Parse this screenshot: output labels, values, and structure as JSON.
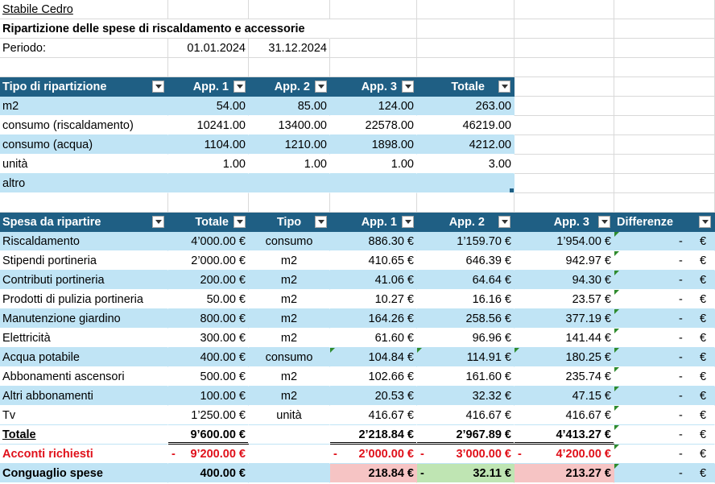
{
  "title": "Stabile Cedro",
  "subtitle": "Ripartizione delle spese di riscaldamento e accessorie",
  "period": {
    "label": "Periodo:",
    "start": "01.01.2024",
    "end": "31.12.2024"
  },
  "table1": {
    "headers": [
      "Tipo di ripartizione",
      "App. 1",
      "App. 2",
      "App. 3",
      "Totale"
    ],
    "rows": [
      [
        "m2",
        "54.00",
        "85.00",
        "124.00",
        "263.00"
      ],
      [
        "consumo (riscaldamento)",
        "10241.00",
        "13400.00",
        "22578.00",
        "46219.00"
      ],
      [
        "consumo (acqua)",
        "1104.00",
        "1210.00",
        "1898.00",
        "4212.00"
      ],
      [
        "unità",
        "1.00",
        "1.00",
        "1.00",
        "3.00"
      ],
      [
        "altro",
        "",
        "",
        "",
        ""
      ]
    ]
  },
  "table2": {
    "headers": [
      "Spesa da ripartire",
      "Totale",
      "Tipo",
      "App. 1",
      "App. 2",
      "App. 3",
      "Differenze"
    ],
    "rows": [
      [
        "Riscaldamento",
        "4’000.00 €",
        "consumo",
        "886.30 €",
        "1’159.70 €",
        "1’954.00 €",
        "-",
        "€"
      ],
      [
        "Stipendi portineria",
        "2’000.00 €",
        "m2",
        "410.65 €",
        "646.39 €",
        "942.97 €",
        "-",
        "€"
      ],
      [
        "Contributi portineria",
        "200.00 €",
        "m2",
        "41.06 €",
        "64.64 €",
        "94.30 €",
        "-",
        "€"
      ],
      [
        "Prodotti di pulizia portineria",
        "50.00 €",
        "m2",
        "10.27 €",
        "16.16 €",
        "23.57 €",
        "-",
        "€"
      ],
      [
        "Manutenzione giardino",
        "800.00 €",
        "m2",
        "164.26 €",
        "258.56 €",
        "377.19 €",
        "-",
        "€"
      ],
      [
        "Elettricità",
        "300.00 €",
        "m2",
        "61.60 €",
        "96.96 €",
        "141.44 €",
        "-",
        "€"
      ],
      [
        "Acqua potabile",
        "400.00 €",
        "consumo",
        "104.84 €",
        "114.91 €",
        "180.25 €",
        "-",
        "€"
      ],
      [
        "Abbonamenti ascensori",
        "500.00 €",
        "m2",
        "102.66 €",
        "161.60 €",
        "235.74 €",
        "-",
        "€"
      ],
      [
        "Altri abbonamenti",
        "100.00 €",
        "m2",
        "20.53 €",
        "32.32 €",
        "47.15 €",
        "-",
        "€"
      ],
      [
        "Tv",
        "1’250.00 €",
        "unità",
        "416.67 €",
        "416.67 €",
        "416.67 €",
        "-",
        "€"
      ]
    ],
    "total": [
      "Totale",
      "9’600.00 €",
      "",
      "2’218.84 €",
      "2’967.89 €",
      "4’413.27 €",
      "-",
      "€"
    ],
    "acconti": [
      "Acconti richiesti",
      "9’200.00 €",
      "",
      "2’000.00 €",
      "3’000.00 €",
      "4’200.00 €",
      "-",
      "€"
    ],
    "acconti_minus": "-",
    "conguaglio": [
      "Conguaglio spese",
      "400.00 €",
      "",
      "218.84 €",
      "32.11 €",
      "213.27 €",
      "-",
      "€"
    ],
    "conguaglio_minus": "-"
  },
  "colors": {
    "header": "#1f5f84",
    "band": "#c0e4f5",
    "red": "#e0101a",
    "pink": "#f6c4c4",
    "green": "#bfe5b3"
  }
}
